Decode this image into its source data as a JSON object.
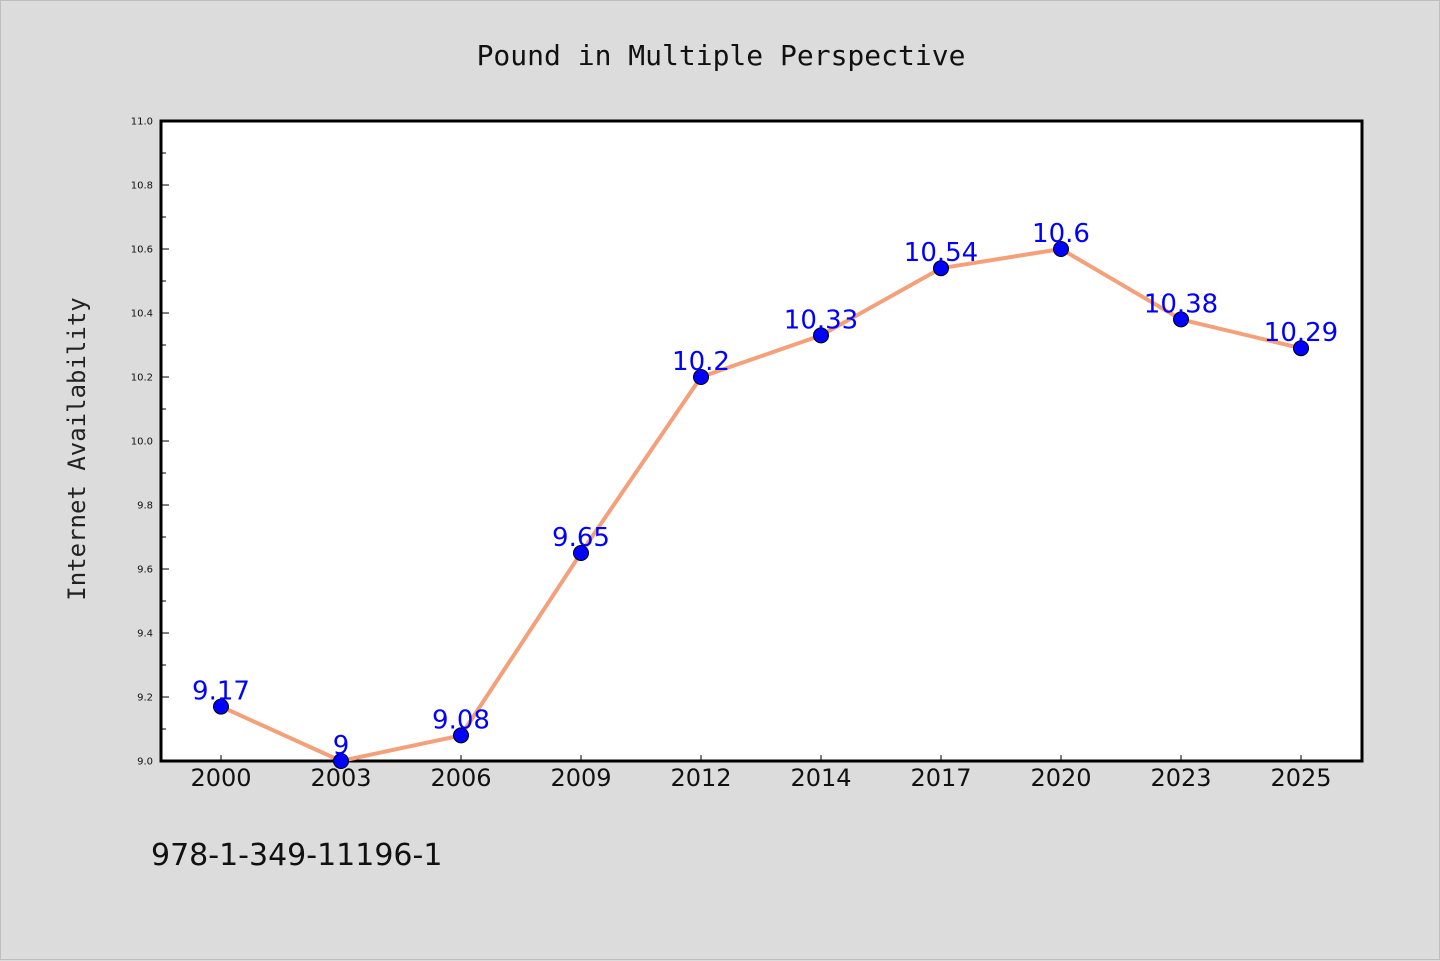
{
  "chart_data": {
    "type": "line",
    "title": "Pound in Multiple Perspective",
    "xlabel": "",
    "ylabel": "Internet Availability",
    "categories": [
      "2000",
      "2003",
      "2006",
      "2009",
      "2012",
      "2014",
      "2017",
      "2020",
      "2023",
      "2025"
    ],
    "values": [
      9.17,
      9.0,
      9.08,
      9.65,
      10.2,
      10.33,
      10.54,
      10.6,
      10.38,
      10.29
    ],
    "data_labels": [
      "9.17",
      "9",
      "9.08",
      "9.65",
      "10.2",
      "10.33",
      "10.54",
      "10.6",
      "10.38",
      "10.29"
    ],
    "yticks": [
      "9.0",
      "9.2",
      "9.4",
      "9.6",
      "9.8",
      "10.0",
      "10.2",
      "10.4",
      "10.6",
      "10.8",
      "11.0"
    ],
    "ylim": [
      9.0,
      11.0
    ],
    "grid": false,
    "legend": "none",
    "line_color": "#f4a07a",
    "marker_color": "#0000ff",
    "label_color": "#0000ff"
  },
  "footer": {
    "text": "978-1-349-11196-1"
  }
}
